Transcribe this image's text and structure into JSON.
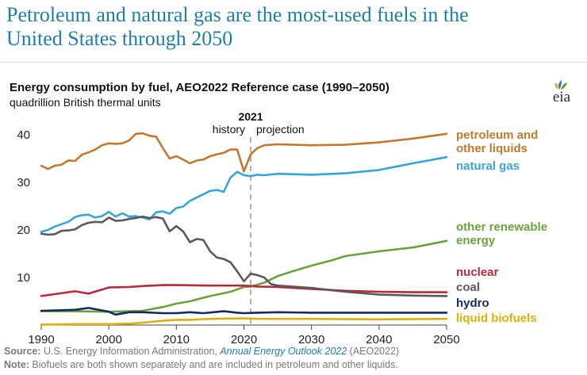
{
  "headline": {
    "line1": "Petroleum and natural gas are the most-used fuels in the",
    "line2": "United States through 2050"
  },
  "logo": {
    "text": "eia"
  },
  "source": {
    "label": "Source:",
    "text_before": " U.S. Energy Information Administration, ",
    "link_text": "Annual Energy Outlook 2022",
    "text_after": " (AEO2022)"
  },
  "note": {
    "label": "Note:",
    "text": " Biofuels are both shown separately and are included in petroleum and other liquids."
  },
  "chart_data": {
    "type": "line",
    "title": "Energy consumption by fuel, AEO2022 Reference case (1990–2050)",
    "subtitle": "quadrillion British thermal units",
    "xlabel": "",
    "ylabel": "",
    "xlim": [
      1990,
      2050
    ],
    "ylim": [
      0,
      45
    ],
    "x_ticks": [
      1990,
      2000,
      2010,
      2020,
      2030,
      2040,
      2050
    ],
    "y_ticks": [
      0,
      10,
      20,
      30,
      40
    ],
    "grid": false,
    "divider": {
      "year": 2021,
      "label": "2021",
      "left_label": "history",
      "right_label": "projection"
    },
    "colors": {
      "petroleum": "#c07a2d",
      "natural_gas": "#35a6d6",
      "renewable": "#6aa23d",
      "nuclear": "#b52a3c",
      "coal": "#5a5a5a",
      "hydro": "#122a5e",
      "biofuels": "#d9b10c",
      "axis": "#444444",
      "divider": "#9a9a9a"
    },
    "series": [
      {
        "name": "petroleum and other liquids",
        "key": "petroleum",
        "x": [
          1990,
          1991,
          1992,
          1993,
          1994,
          1995,
          1996,
          1997,
          1998,
          1999,
          2000,
          2001,
          2002,
          2003,
          2004,
          2005,
          2006,
          2007,
          2008,
          2009,
          2010,
          2011,
          2012,
          2013,
          2014,
          2015,
          2016,
          2017,
          2018,
          2019,
          2020,
          2021,
          2022,
          2023,
          2025,
          2030,
          2035,
          2040,
          2045,
          2050
        ],
        "values": [
          33.5,
          32.8,
          33.5,
          33.7,
          34.6,
          34.5,
          35.8,
          36.3,
          36.9,
          37.8,
          38.2,
          38.1,
          38.2,
          38.8,
          40.2,
          40.3,
          39.8,
          39.6,
          37.2,
          35.0,
          35.5,
          34.8,
          34.0,
          34.6,
          34.8,
          35.5,
          35.9,
          36.2,
          36.9,
          36.9,
          32.3,
          35.9,
          37.2,
          37.8,
          38.0,
          37.8,
          37.9,
          38.4,
          39.2,
          40.2
        ]
      },
      {
        "name": "natural gas",
        "key": "natural_gas",
        "x": [
          1990,
          1991,
          1992,
          1993,
          1994,
          1995,
          1996,
          1997,
          1998,
          1999,
          2000,
          2001,
          2002,
          2003,
          2004,
          2005,
          2006,
          2007,
          2008,
          2009,
          2010,
          2011,
          2012,
          2013,
          2014,
          2015,
          2016,
          2017,
          2018,
          2019,
          2020,
          2021,
          2022,
          2023,
          2025,
          2030,
          2035,
          2040,
          2045,
          2050
        ],
        "values": [
          19.6,
          20.0,
          20.7,
          21.2,
          21.7,
          22.7,
          23.1,
          23.2,
          22.6,
          22.9,
          23.8,
          22.8,
          23.5,
          22.8,
          22.9,
          22.6,
          22.2,
          23.7,
          23.9,
          23.4,
          24.6,
          24.9,
          26.1,
          26.8,
          27.5,
          28.2,
          28.4,
          28.0,
          31.0,
          32.2,
          31.5,
          31.3,
          31.6,
          31.5,
          31.8,
          31.6,
          31.9,
          32.6,
          34.0,
          35.3
        ]
      },
      {
        "name": "other renewable energy",
        "key": "renewable",
        "x": [
          1990,
          1995,
          2000,
          2005,
          2008,
          2010,
          2012,
          2015,
          2018,
          2020,
          2021,
          2023,
          2025,
          2027,
          2030,
          2033,
          2035,
          2040,
          2045,
          2050
        ],
        "values": [
          2.9,
          2.9,
          2.8,
          3.0,
          3.8,
          4.5,
          5.0,
          6.1,
          7.0,
          8.0,
          8.1,
          8.9,
          10.3,
          11.2,
          12.5,
          13.6,
          14.5,
          15.5,
          16.3,
          17.7
        ]
      },
      {
        "name": "nuclear",
        "key": "nuclear",
        "x": [
          1990,
          1992,
          1995,
          1997,
          2000,
          2003,
          2005,
          2008,
          2010,
          2015,
          2020,
          2022,
          2025,
          2030,
          2035,
          2040,
          2045,
          2050
        ],
        "values": [
          6.1,
          6.5,
          7.1,
          6.6,
          7.9,
          8.0,
          8.2,
          8.4,
          8.4,
          8.3,
          8.3,
          8.1,
          8.0,
          7.6,
          7.2,
          7.0,
          6.9,
          6.9
        ]
      },
      {
        "name": "coal",
        "key": "coal",
        "x": [
          1990,
          1991,
          1992,
          1993,
          1994,
          1995,
          1996,
          1997,
          1998,
          1999,
          2000,
          2001,
          2002,
          2003,
          2004,
          2005,
          2006,
          2007,
          2008,
          2009,
          2010,
          2011,
          2012,
          2013,
          2014,
          2015,
          2016,
          2017,
          2018,
          2019,
          2020,
          2021,
          2022,
          2023,
          2024,
          2025,
          2030,
          2035,
          2040,
          2045,
          2050
        ],
        "values": [
          19.2,
          19.0,
          19.1,
          19.8,
          19.9,
          20.1,
          21.0,
          21.5,
          21.7,
          21.6,
          22.6,
          21.9,
          22.0,
          22.3,
          22.5,
          22.8,
          22.5,
          22.7,
          22.4,
          19.7,
          20.8,
          19.7,
          17.4,
          18.1,
          17.9,
          15.5,
          14.2,
          13.9,
          13.2,
          11.3,
          9.2,
          10.8,
          10.5,
          10.0,
          8.6,
          8.3,
          7.8,
          7.0,
          6.4,
          6.2,
          6.1
        ]
      },
      {
        "name": "hydro",
        "key": "hydro",
        "x": [
          1990,
          1995,
          1997,
          2000,
          2001,
          2003,
          2005,
          2008,
          2010,
          2012,
          2014,
          2017,
          2019,
          2020,
          2022,
          2025,
          2030,
          2040,
          2050
        ],
        "values": [
          3.0,
          3.2,
          3.6,
          2.8,
          2.2,
          2.7,
          2.7,
          2.5,
          2.5,
          2.7,
          2.5,
          2.9,
          2.6,
          2.5,
          2.6,
          2.7,
          2.6,
          2.6,
          2.6
        ]
      },
      {
        "name": "liquid biofuels",
        "key": "biofuels",
        "x": [
          1990,
          1995,
          2000,
          2003,
          2005,
          2008,
          2010,
          2012,
          2015,
          2020,
          2022,
          2025,
          2030,
          2040,
          2050
        ],
        "values": [
          0.1,
          0.2,
          0.2,
          0.3,
          0.5,
          0.9,
          1.1,
          1.1,
          1.3,
          1.4,
          1.3,
          1.3,
          1.3,
          1.2,
          1.3
        ]
      }
    ],
    "legend": [
      {
        "key": "petroleum",
        "lines": [
          "petroleum and",
          "other liquids"
        ]
      },
      {
        "key": "natural_gas",
        "lines": [
          "natural gas"
        ]
      },
      {
        "key": "renewable",
        "lines": [
          "other renewable",
          "energy"
        ]
      },
      {
        "key": "nuclear",
        "lines": [
          "nuclear"
        ]
      },
      {
        "key": "coal",
        "lines": [
          "coal"
        ]
      },
      {
        "key": "hydro",
        "lines": [
          "hydro"
        ]
      },
      {
        "key": "biofuels",
        "lines": [
          "liquid biofuels"
        ]
      }
    ]
  }
}
